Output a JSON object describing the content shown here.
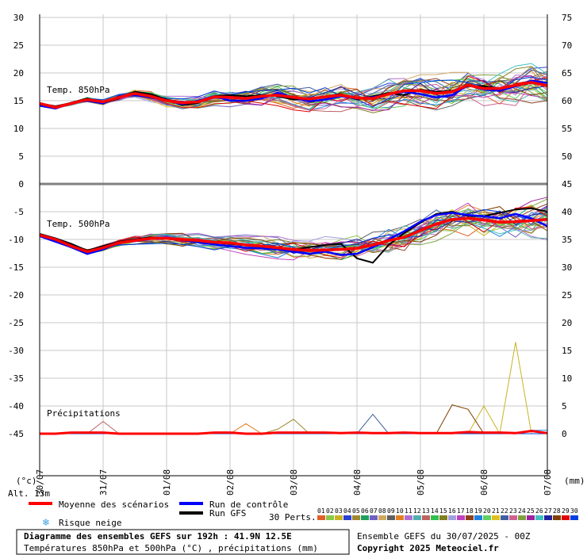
{
  "chart_data": {
    "type": "line",
    "title": "Diagramme des ensembles GEFS sur 192h : 41.9N 12.5E",
    "subtitle": "Températures 850hPa et 500hPa (°C) , précipitations (mm)",
    "x_ticks": [
      "30/07",
      "31/07",
      "01/08",
      "02/08",
      "03/08",
      "04/08",
      "05/08",
      "06/08",
      "07/08"
    ],
    "x_hours": [
      0,
      6,
      12,
      18,
      24,
      30,
      36,
      42,
      48,
      54,
      60,
      66,
      72,
      78,
      84,
      90,
      96,
      102,
      108,
      114,
      120,
      126,
      132,
      138,
      144,
      150,
      156,
      162,
      168,
      174,
      180,
      186,
      192
    ],
    "y_left_ticks": [
      "30",
      "25",
      "20",
      "15",
      "10",
      "5",
      "0",
      "-5",
      "-10",
      "-15",
      "-20",
      "-25",
      "-30",
      "-35",
      "-40",
      "-45"
    ],
    "y_right_ticks": [
      "75",
      "70",
      "65",
      "60",
      "55",
      "50",
      "45",
      "40",
      "35",
      "30",
      "25",
      "20",
      "15",
      "10",
      "5",
      "0"
    ],
    "left_unit": "(°c)",
    "right_unit": "(mm)",
    "altitude_label": "Alt. 13m",
    "panels": [
      {
        "name": "Temp. 850hPa",
        "units": "°C",
        "mean": [
          14.5,
          13.8,
          14.5,
          15.2,
          14.8,
          15.6,
          16.3,
          15.8,
          15.0,
          14.6,
          14.8,
          15.7,
          15.6,
          15.4,
          15.8,
          16.0,
          15.6,
          15.3,
          15.7,
          16.0,
          15.5,
          15.4,
          16.2,
          16.8,
          16.8,
          16.3,
          16.6,
          17.8,
          17.2,
          17.2,
          17.8,
          18.3,
          17.7
        ],
        "control": [
          14.1,
          13.6,
          14.6,
          15.0,
          14.5,
          15.8,
          16.0,
          15.6,
          15.0,
          14.4,
          15.0,
          15.8,
          15.0,
          15.0,
          15.4,
          16.4,
          15.6,
          14.9,
          15.2,
          15.8,
          15.4,
          15.6,
          16.2,
          16.6,
          16.2,
          15.6,
          16.0,
          17.8,
          17.0,
          16.8,
          17.6,
          18.6,
          18.2
        ],
        "gfs": [
          14.5,
          14.0,
          14.6,
          15.4,
          14.6,
          15.4,
          16.6,
          16.2,
          15.2,
          14.2,
          14.6,
          15.8,
          16.0,
          15.8,
          16.0,
          15.8,
          15.2,
          15.4,
          15.8,
          16.2,
          15.2,
          15.8,
          16.4,
          16.0,
          17.0,
          16.6,
          16.8,
          17.6,
          17.6,
          17.2,
          17.6,
          18.2,
          17.6
        ],
        "pert_min": 12.5,
        "pert_max": 21.7
      },
      {
        "name": "Temp. 500hPa",
        "units": "°C",
        "mean": [
          -9.2,
          -10.0,
          -11.2,
          -12.2,
          -11.5,
          -10.6,
          -10.2,
          -9.8,
          -9.8,
          -10.0,
          -10.2,
          -10.5,
          -10.6,
          -11.0,
          -11.2,
          -11.5,
          -11.8,
          -12.0,
          -11.9,
          -11.8,
          -11.6,
          -11.0,
          -10.2,
          -9.6,
          -8.4,
          -7.2,
          -6.4,
          -6.2,
          -6.5,
          -6.9,
          -6.8,
          -6.6,
          -6.4
        ],
        "control": [
          -9.4,
          -10.4,
          -11.4,
          -12.6,
          -11.8,
          -10.6,
          -10.3,
          -9.9,
          -9.7,
          -10.1,
          -10.5,
          -10.9,
          -11.2,
          -11.5,
          -11.6,
          -11.8,
          -12.2,
          -12.6,
          -12.2,
          -12.8,
          -12.6,
          -11.4,
          -10.0,
          -8.5,
          -6.8,
          -5.6,
          -5.2,
          -5.6,
          -5.8,
          -6.2,
          -5.4,
          -6.2,
          -7.6
        ],
        "gfs": [
          -9.0,
          -9.8,
          -10.8,
          -12.0,
          -11.2,
          -10.4,
          -10.0,
          -9.6,
          -9.8,
          -10.0,
          -10.1,
          -10.4,
          -10.8,
          -11.0,
          -11.4,
          -11.6,
          -11.8,
          -11.4,
          -11.0,
          -10.8,
          -13.4,
          -14.2,
          -11.0,
          -8.8,
          -7.0,
          -5.4,
          -5.0,
          -5.8,
          -5.8,
          -5.2,
          -4.6,
          -4.4,
          -5.0
        ],
        "pert_min": -18.4,
        "pert_max": -2.4
      },
      {
        "name": "Précipitations",
        "units": "mm",
        "mean": [
          0,
          0,
          0.2,
          0.2,
          0.2,
          0,
          0,
          0,
          0,
          0,
          0,
          0.2,
          0.2,
          0,
          0,
          0.2,
          0.2,
          0.2,
          0.2,
          0.1,
          0.2,
          0.1,
          0.1,
          0.2,
          0.1,
          0.1,
          0.1,
          0.3,
          0.2,
          0.2,
          0.1,
          0.5,
          0.1
        ],
        "control": [
          0,
          0,
          0,
          0,
          0,
          0,
          0,
          0,
          0,
          0,
          0,
          0,
          0,
          0,
          0,
          0,
          0,
          0,
          0,
          0,
          0,
          0,
          0,
          0,
          0,
          0,
          0,
          0,
          0,
          0,
          0,
          0,
          0
        ],
        "gfs": [
          0,
          0,
          0,
          0,
          0,
          0,
          0,
          0,
          0,
          0,
          0,
          0,
          0,
          0,
          0,
          0,
          0,
          0,
          0,
          0,
          0,
          0,
          0,
          0,
          0,
          0,
          0,
          0,
          0,
          0,
          0,
          0,
          0
        ],
        "pert_max": 16.5
      }
    ],
    "legend": {
      "mean": "Moyenne des scénarios",
      "control": "Run de contrôle",
      "gfs": "Run GFS",
      "snow": "Risque neige",
      "perts": "30 Perts.",
      "pert_ids": [
        "01",
        "02",
        "03",
        "04",
        "05",
        "06",
        "07",
        "08",
        "09",
        "10",
        "11",
        "12",
        "13",
        "14",
        "15",
        "16",
        "17",
        "18",
        "19",
        "20",
        "21",
        "22",
        "23",
        "24",
        "25",
        "26",
        "27",
        "28",
        "29",
        "30"
      ],
      "pert_colors": [
        "#e0602a",
        "#8ac848",
        "#c8b420",
        "#2a40d8",
        "#a08830",
        "#20a060",
        "#7060c0",
        "#d0a860",
        "#606060",
        "#e08020",
        "#b070d0",
        "#50b0b0",
        "#c06060",
        "#30c050",
        "#808020",
        "#a0a0e0",
        "#c040c0",
        "#904020",
        "#2080e0",
        "#60d060",
        "#e0c020",
        "#4060a0",
        "#d06090",
        "#80a040",
        "#a020a0",
        "#40c0c0",
        "#2020a0",
        "#804000",
        "#e00000",
        "#0040e0"
      ]
    },
    "colors": {
      "mean": "#ff0000",
      "control": "#0000ff",
      "gfs": "#000000",
      "grid": "#c8c8c8",
      "snow": "#3aa0e0"
    },
    "footer": {
      "run": "Ensemble GEFS du 30/07/2025 - 00Z",
      "copyright": "Copyright 2025 Meteociel.fr"
    }
  }
}
